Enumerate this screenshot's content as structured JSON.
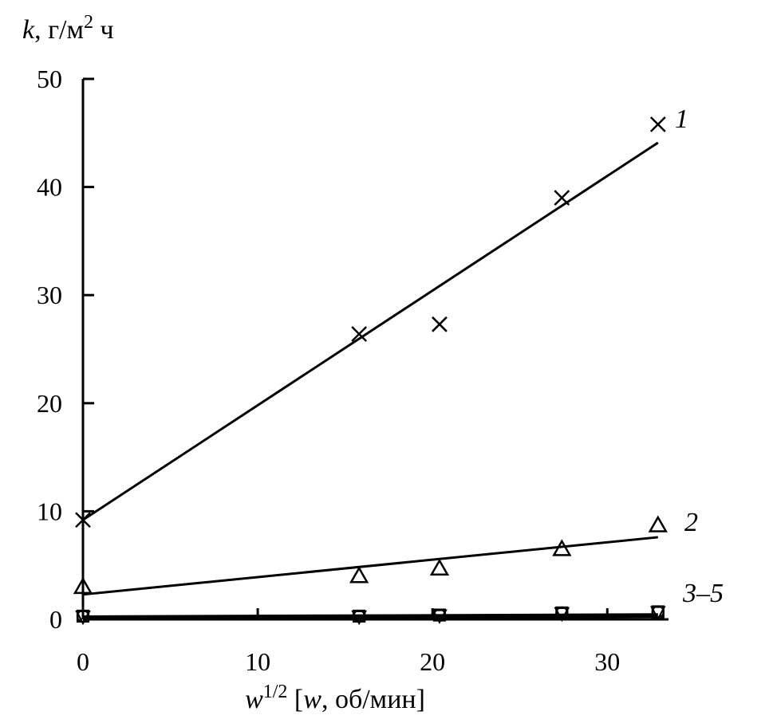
{
  "chart_data": {
    "type": "scatter",
    "title": "",
    "ylabel": "k, г/м² ч",
    "ylabel_parts": {
      "var": "k",
      "unit": ", г/м",
      "sup": "2",
      "tail": " ч"
    },
    "xlabel": "w^1/2 [w, об/мин]",
    "xlabel_parts": {
      "var": "w",
      "sup": "1/2",
      "open": " [",
      "var2": "w",
      "tail": ", об/мин]"
    },
    "xlim": [
      0,
      33
    ],
    "ylim": [
      0,
      50
    ],
    "xticks": [
      0,
      10,
      20,
      30
    ],
    "xtick_labels": [
      "0",
      "10",
      "20",
      "30"
    ],
    "yticks": [
      0,
      10,
      20,
      30,
      40,
      50
    ],
    "ytick_labels": [
      "0",
      "10",
      "20",
      "30",
      "40",
      "50"
    ],
    "grid": false,
    "series": [
      {
        "name": "1",
        "marker": "x",
        "points": [
          [
            0,
            9.2
          ],
          [
            15.8,
            26.4
          ],
          [
            20.4,
            27.3
          ],
          [
            27.4,
            39.0
          ],
          [
            32.9,
            45.8
          ]
        ],
        "fit": [
          [
            0,
            9.2
          ],
          [
            32.9,
            44.1
          ]
        ]
      },
      {
        "name": "2",
        "marker": "triangle",
        "points": [
          [
            0,
            3.0
          ],
          [
            15.8,
            4.0
          ],
          [
            20.4,
            4.7
          ],
          [
            27.4,
            6.5
          ],
          [
            32.9,
            8.7
          ]
        ],
        "fit": [
          [
            0,
            2.3
          ],
          [
            32.9,
            7.6
          ]
        ]
      },
      {
        "name": "3–5",
        "marker": "mixed",
        "points": [
          [
            0,
            0.3
          ],
          [
            15.8,
            0.3
          ],
          [
            20.4,
            0.4
          ],
          [
            27.4,
            0.6
          ],
          [
            32.9,
            0.7
          ]
        ],
        "fit": [
          [
            0,
            0.15
          ],
          [
            32.9,
            0.35
          ]
        ]
      }
    ]
  }
}
